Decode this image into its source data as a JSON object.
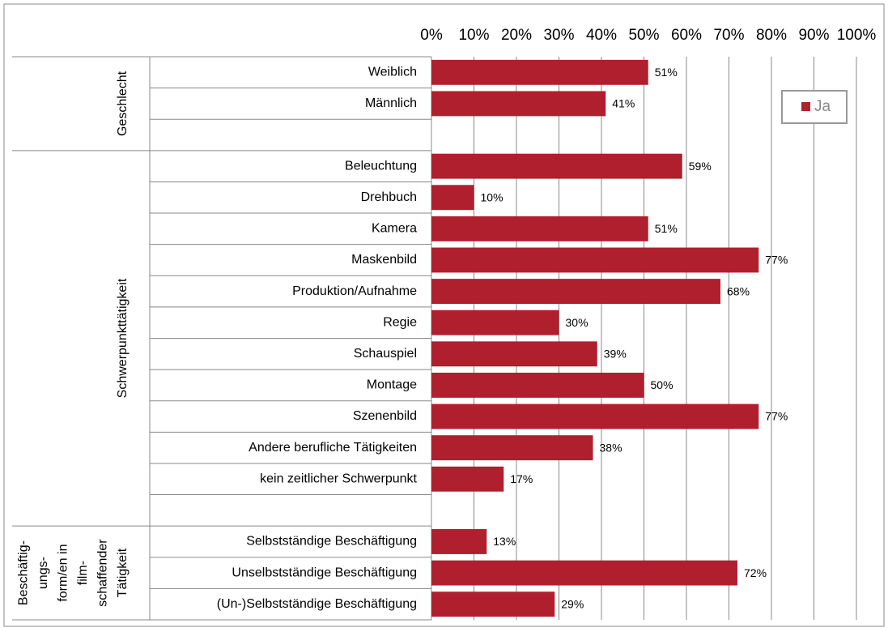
{
  "chart_data": {
    "type": "bar",
    "groups": [
      {
        "label": [
          "Geschlecht"
        ],
        "categories": [
          "Weiblich",
          "Männlich",
          null
        ],
        "values": [
          51,
          41,
          null
        ],
        "value_labels": [
          "51%",
          "41%",
          null
        ]
      },
      {
        "label": [
          "Schwerpunkttätigkeit"
        ],
        "categories": [
          "Beleuchtung",
          "Drehbuch",
          "Kamera",
          "Maskenbild",
          "Produktion/Aufnahme",
          "Regie",
          "Schauspiel",
          "Montage",
          "Szenenbild",
          "Andere berufliche Tätigkeiten",
          "kein zeitlicher Schwerpunkt",
          null
        ],
        "values": [
          59,
          10,
          51,
          77,
          68,
          30,
          39,
          50,
          77,
          38,
          17,
          null
        ],
        "value_labels": [
          "59%",
          "10%",
          "51%",
          "77%",
          "68%",
          "30%",
          "39%",
          "50%",
          "77%",
          "38%",
          "17%",
          null
        ]
      },
      {
        "label": [
          "Beschäftig-",
          "ungs-",
          "form/en in",
          "film-",
          "schaffender",
          "Tätigkeit"
        ],
        "categories": [
          "Selbstständige Beschäftigung",
          "Unselbstständige Beschäftigung",
          "(Un-)Selbstständige Beschäftigung"
        ],
        "values": [
          13,
          72,
          29
        ],
        "value_labels": [
          "13%",
          "72%",
          "29%"
        ]
      }
    ],
    "series_name": "Ja",
    "color": "#b01f2e",
    "xlim": [
      0,
      100
    ],
    "xticks": [
      {
        "value": 0,
        "label": "0%"
      },
      {
        "value": 10,
        "label": "10%"
      },
      {
        "value": 20,
        "label": "20%"
      },
      {
        "value": 30,
        "label": "30%"
      },
      {
        "value": 40,
        "label": "40%"
      },
      {
        "value": 50,
        "label": "50%"
      },
      {
        "value": 60,
        "label": "60%"
      },
      {
        "value": 70,
        "label": "70%"
      },
      {
        "value": 80,
        "label": "80%"
      },
      {
        "value": 90,
        "label": "90%"
      },
      {
        "value": 100,
        "label": "100%"
      }
    ],
    "grid": true,
    "legend": "upper right"
  }
}
